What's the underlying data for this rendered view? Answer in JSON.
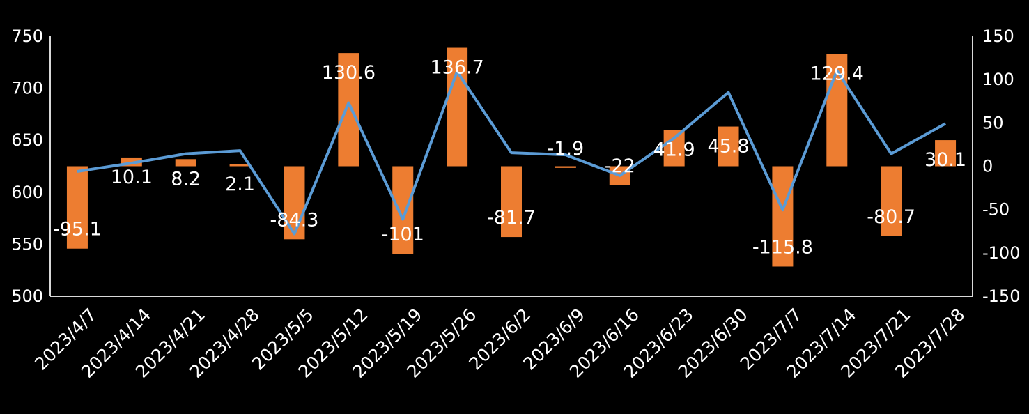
{
  "chart_data": {
    "type": "bar+line",
    "title": "",
    "xlabel": "",
    "ylabel_left": "",
    "ylabel_right": "",
    "categories": [
      "2023/4/7",
      "2023/4/14",
      "2023/4/21",
      "2023/4/28",
      "2023/5/5",
      "2023/5/12",
      "2023/5/19",
      "2023/5/26",
      "2023/6/2",
      "2023/6/9",
      "2023/6/16",
      "2023/6/23",
      "2023/6/30",
      "2023/7/7",
      "2023/7/14",
      "2023/7/21",
      "2023/7/28"
    ],
    "left_axis": {
      "min": 500,
      "max": 750,
      "ticks": [
        500,
        550,
        600,
        650,
        700,
        750
      ]
    },
    "right_axis": {
      "min": -150,
      "max": 150,
      "ticks": [
        -150,
        -100,
        -50,
        0,
        50,
        100,
        150
      ]
    },
    "grid": false,
    "legend": "none",
    "series": [
      {
        "type": "bar",
        "axis": "right",
        "color": "#ED7D31",
        "values": [
          -95.1,
          10.1,
          8.2,
          2.1,
          -84.3,
          130.6,
          -101,
          136.7,
          -81.7,
          -1.9,
          -22,
          41.9,
          45.8,
          -115.8,
          129.4,
          -80.7,
          30.1
        ],
        "labels": [
          "-95.1",
          "10.1",
          "8.2",
          "2.1",
          "-84.3",
          "130.6",
          "-101",
          "136.7",
          "-81.7",
          "-1.9",
          "-22",
          "41.9",
          "45.8",
          "-115.8",
          "129.4",
          "-80.7",
          "30.1"
        ]
      },
      {
        "type": "line",
        "axis": "left",
        "color": "#5B9BD5",
        "values": [
          620,
          628,
          637,
          640,
          560,
          686,
          574,
          716,
          638,
          636,
          616,
          652,
          696,
          583,
          717,
          637,
          666
        ]
      }
    ]
  }
}
